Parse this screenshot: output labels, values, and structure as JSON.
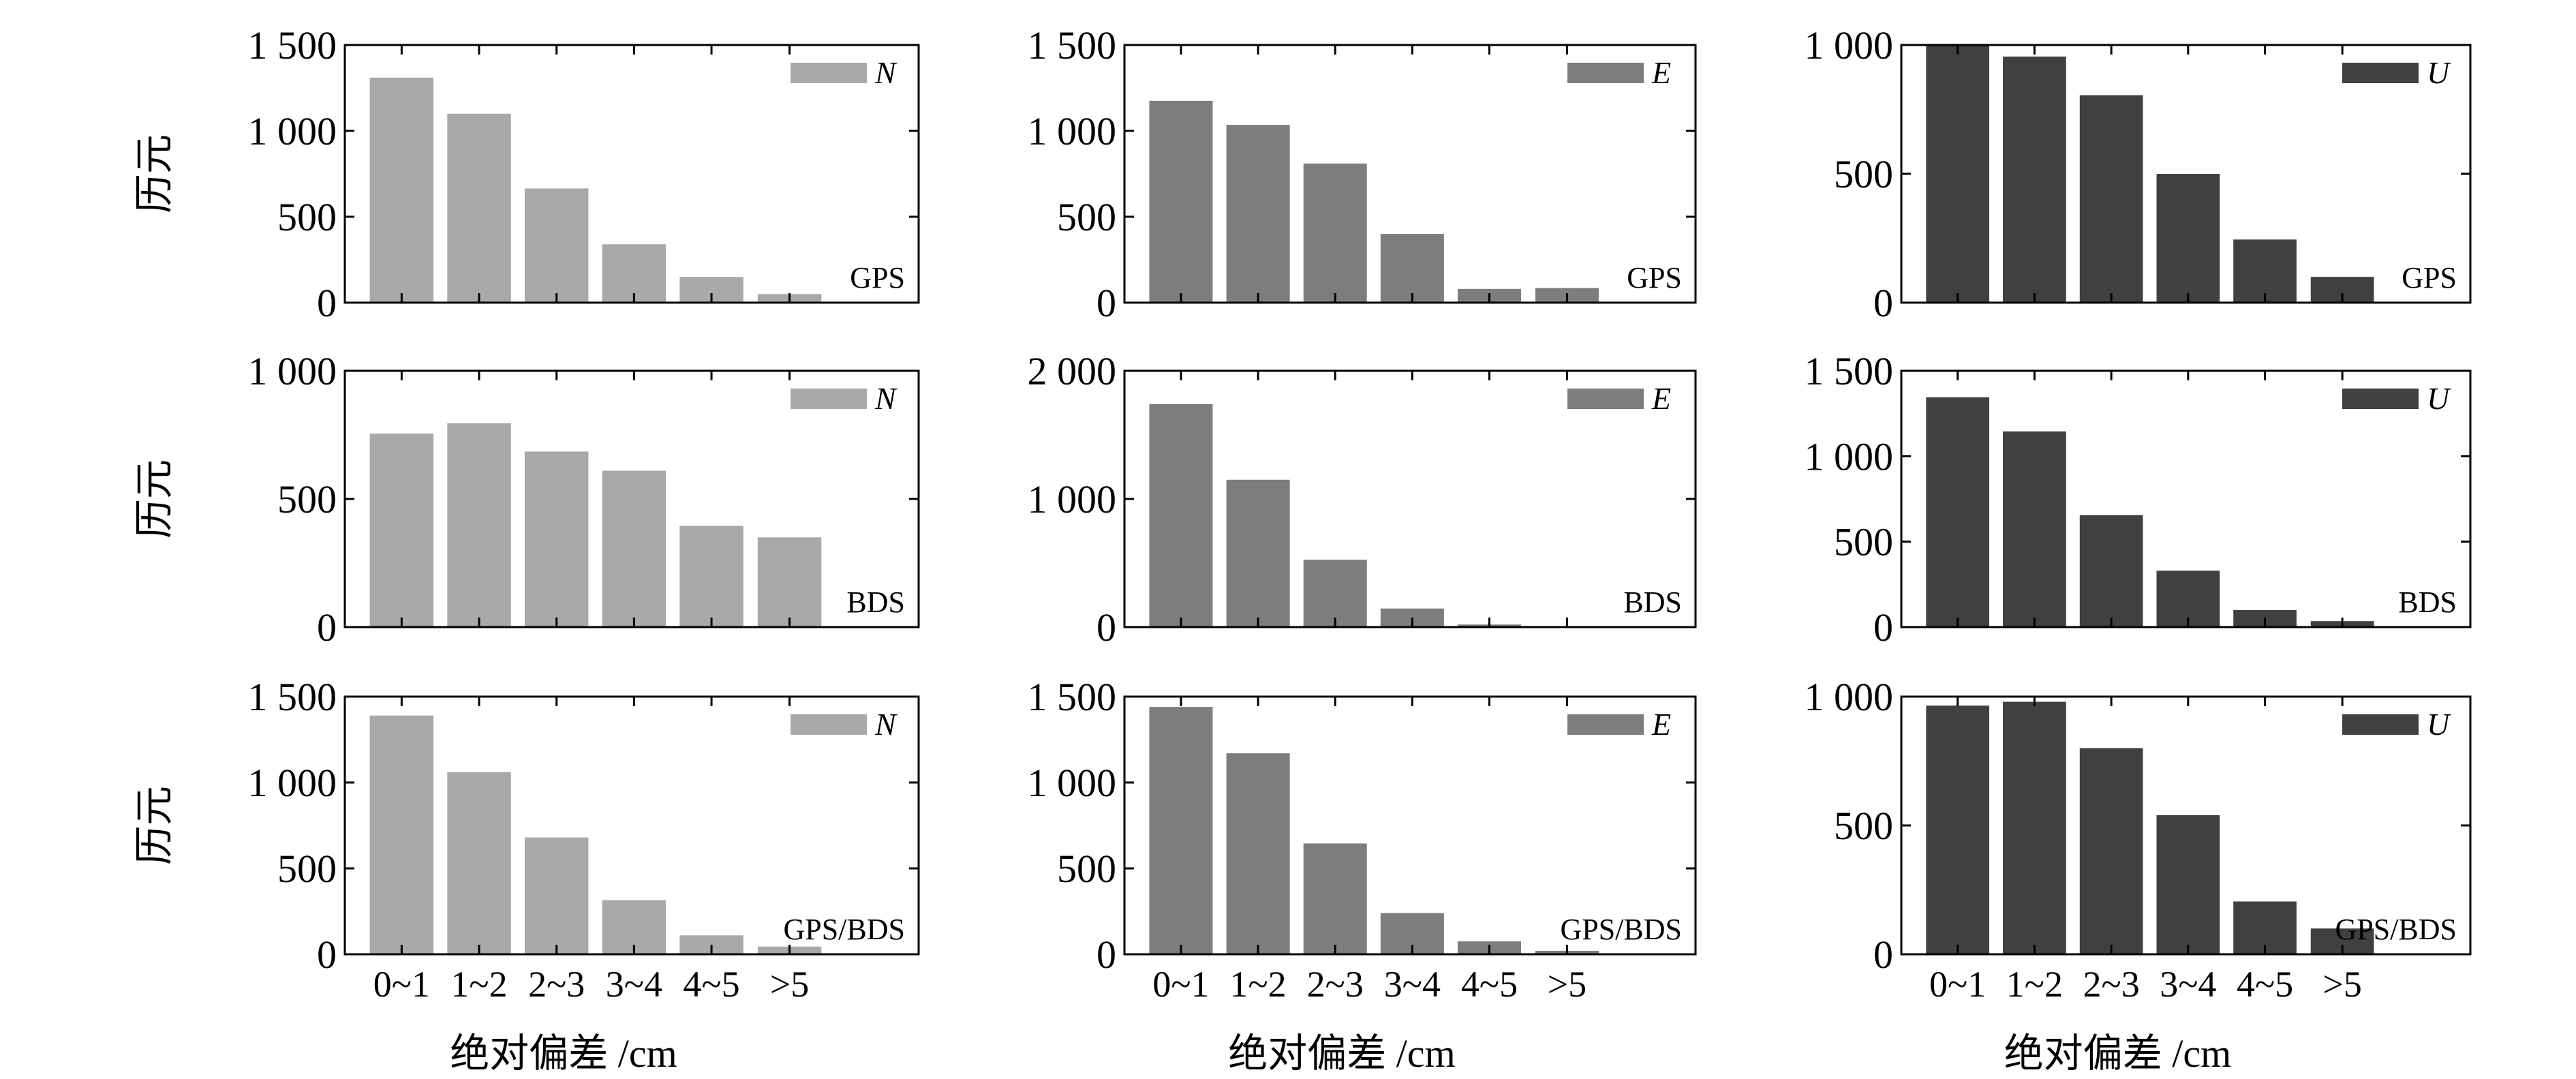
{
  "figure": {
    "y_label": "历元",
    "x_label": "绝对偏差 /cm",
    "colors": {
      "N": "#a9a9a9",
      "E": "#7d7d7d",
      "U": "#404040"
    }
  },
  "chart_data": [
    {
      "type": "bar",
      "row": 0,
      "col": 0,
      "system": "GPS",
      "legend": "N",
      "categories": [
        "0~1",
        "1~2",
        "2~3",
        "3~4",
        "4~5",
        ">5"
      ],
      "values": [
        1310,
        1100,
        665,
        340,
        150,
        50
      ],
      "ylim": [
        0,
        1500
      ],
      "yticks": [
        0,
        500,
        1000,
        1500
      ],
      "yticklabels": [
        "0",
        "500",
        "1 000",
        "1 500"
      ]
    },
    {
      "type": "bar",
      "row": 0,
      "col": 1,
      "system": "GPS",
      "legend": "E",
      "categories": [
        "0~1",
        "1~2",
        "2~3",
        "3~4",
        "4~5",
        ">5"
      ],
      "values": [
        1175,
        1035,
        810,
        400,
        80,
        85
      ],
      "ylim": [
        0,
        1500
      ],
      "yticks": [
        0,
        500,
        1000,
        1500
      ],
      "yticklabels": [
        "0",
        "500",
        "1 000",
        "1 500"
      ]
    },
    {
      "type": "bar",
      "row": 0,
      "col": 2,
      "system": "GPS",
      "legend": "U",
      "categories": [
        "0~1",
        "1~2",
        "2~3",
        "3~4",
        "4~5",
        ">5"
      ],
      "values": [
        1000,
        955,
        805,
        500,
        245,
        100
      ],
      "ylim": [
        0,
        1000
      ],
      "yticks": [
        0,
        500,
        1000
      ],
      "yticklabels": [
        "0",
        "500",
        "1 000"
      ]
    },
    {
      "type": "bar",
      "row": 1,
      "col": 0,
      "system": "BDS",
      "legend": "N",
      "categories": [
        "0~1",
        "1~2",
        "2~3",
        "3~4",
        "4~5",
        ">5"
      ],
      "values": [
        755,
        795,
        685,
        610,
        395,
        350
      ],
      "ylim": [
        0,
        1000
      ],
      "yticks": [
        0,
        500,
        1000
      ],
      "yticklabels": [
        "0",
        "500",
        "1 000"
      ]
    },
    {
      "type": "bar",
      "row": 1,
      "col": 1,
      "system": "BDS",
      "legend": "E",
      "categories": [
        "0~1",
        "1~2",
        "2~3",
        "3~4",
        "4~5",
        ">5"
      ],
      "values": [
        1740,
        1150,
        525,
        145,
        20,
        5
      ],
      "ylim": [
        0,
        2000
      ],
      "yticks": [
        0,
        1000,
        2000
      ],
      "yticklabels": [
        "0",
        "1 000",
        "2 000"
      ]
    },
    {
      "type": "bar",
      "row": 1,
      "col": 2,
      "system": "BDS",
      "legend": "U",
      "categories": [
        "0~1",
        "1~2",
        "2~3",
        "3~4",
        "4~5",
        ">5"
      ],
      "values": [
        1345,
        1145,
        655,
        330,
        100,
        35
      ],
      "ylim": [
        0,
        1500
      ],
      "yticks": [
        0,
        500,
        1000,
        1500
      ],
      "yticklabels": [
        "0",
        "500",
        "1 000",
        "1 500"
      ]
    },
    {
      "type": "bar",
      "row": 2,
      "col": 0,
      "system": "GPS/BDS",
      "legend": "N",
      "categories": [
        "0~1",
        "1~2",
        "2~3",
        "3~4",
        "4~5",
        ">5"
      ],
      "values": [
        1390,
        1060,
        680,
        315,
        110,
        45
      ],
      "ylim": [
        0,
        1500
      ],
      "yticks": [
        0,
        500,
        1000,
        1500
      ],
      "yticklabels": [
        "0",
        "500",
        "1 000",
        "1 500"
      ]
    },
    {
      "type": "bar",
      "row": 2,
      "col": 1,
      "system": "GPS/BDS",
      "legend": "E",
      "categories": [
        "0~1",
        "1~2",
        "2~3",
        "3~4",
        "4~5",
        ">5"
      ],
      "values": [
        1440,
        1170,
        645,
        240,
        75,
        20
      ],
      "ylim": [
        0,
        1500
      ],
      "yticks": [
        0,
        500,
        1000,
        1500
      ],
      "yticklabels": [
        "0",
        "500",
        "1 000",
        "1 500"
      ]
    },
    {
      "type": "bar",
      "row": 2,
      "col": 2,
      "system": "GPS/BDS",
      "legend": "U",
      "categories": [
        "0~1",
        "1~2",
        "2~3",
        "3~4",
        "4~5",
        ">5"
      ],
      "values": [
        965,
        980,
        800,
        540,
        205,
        100
      ],
      "ylim": [
        0,
        1000
      ],
      "yticks": [
        0,
        500,
        1000
      ],
      "yticklabels": [
        "0",
        "500",
        "1 000"
      ]
    }
  ]
}
